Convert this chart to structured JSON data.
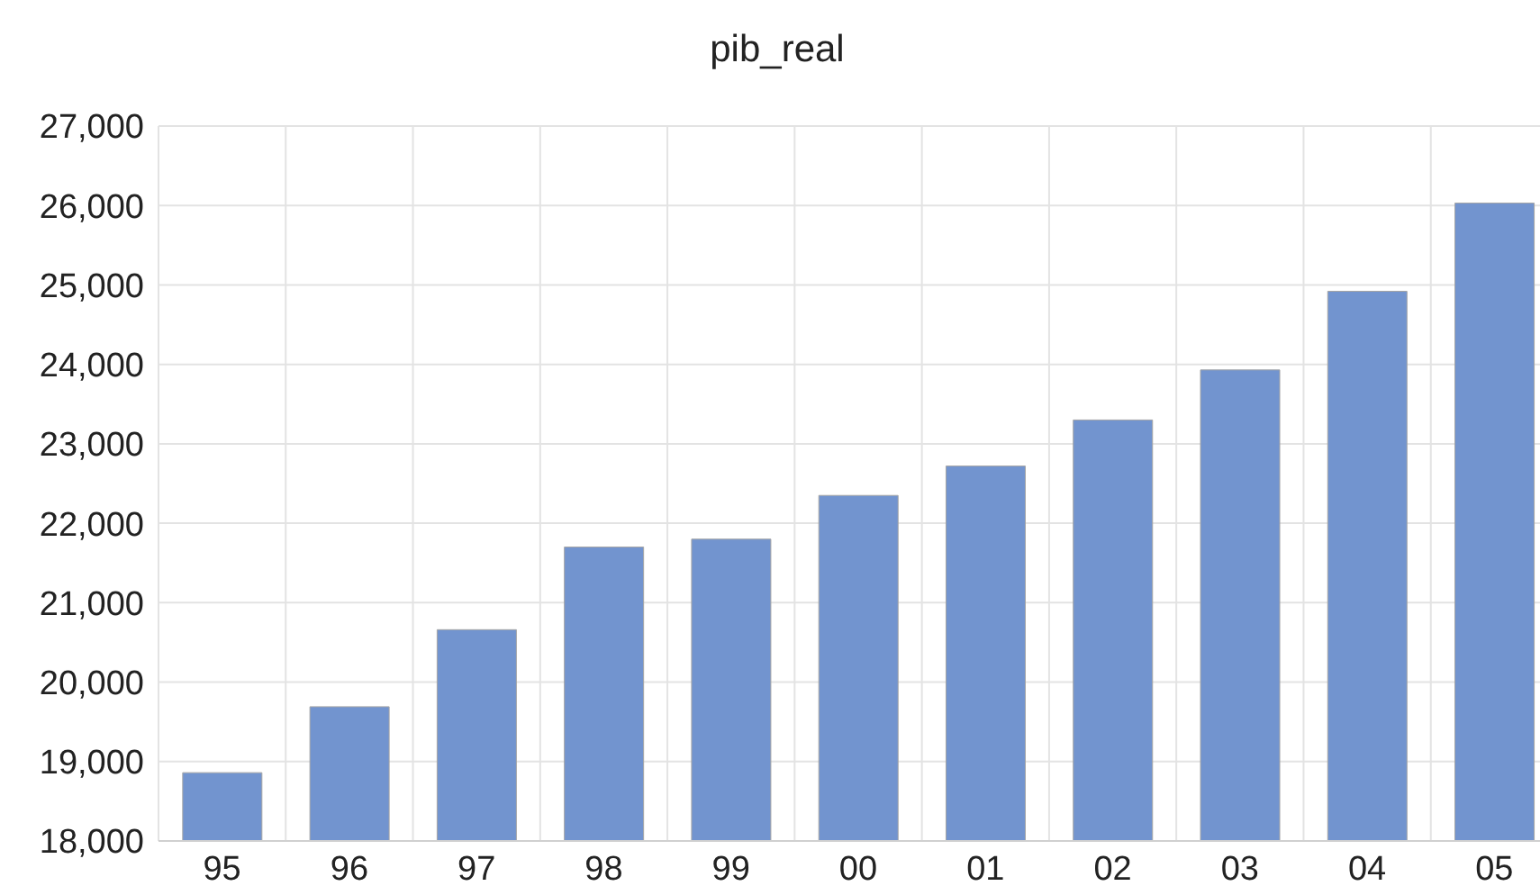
{
  "chart_data": {
    "type": "bar",
    "title": "pib_real",
    "categories": [
      "95",
      "96",
      "97",
      "98",
      "99",
      "00",
      "01",
      "02",
      "03",
      "04",
      "05"
    ],
    "values": [
      18860,
      19690,
      20660,
      21700,
      21800,
      22350,
      22720,
      23300,
      23930,
      24920,
      26030
    ],
    "color": "#7294cf",
    "ylim": [
      18000,
      27000
    ],
    "yticks": [
      {
        "value": 18000,
        "label": "18,000"
      },
      {
        "value": 19000,
        "label": "19,000"
      },
      {
        "value": 20000,
        "label": "20,000"
      },
      {
        "value": 21000,
        "label": "21,000"
      },
      {
        "value": 22000,
        "label": "22,000"
      },
      {
        "value": 23000,
        "label": "23,000"
      },
      {
        "value": 24000,
        "label": "24,000"
      },
      {
        "value": 25000,
        "label": "25,000"
      },
      {
        "value": 26000,
        "label": "26,000"
      },
      {
        "value": 27000,
        "label": "27,000"
      }
    ],
    "grid": true
  }
}
